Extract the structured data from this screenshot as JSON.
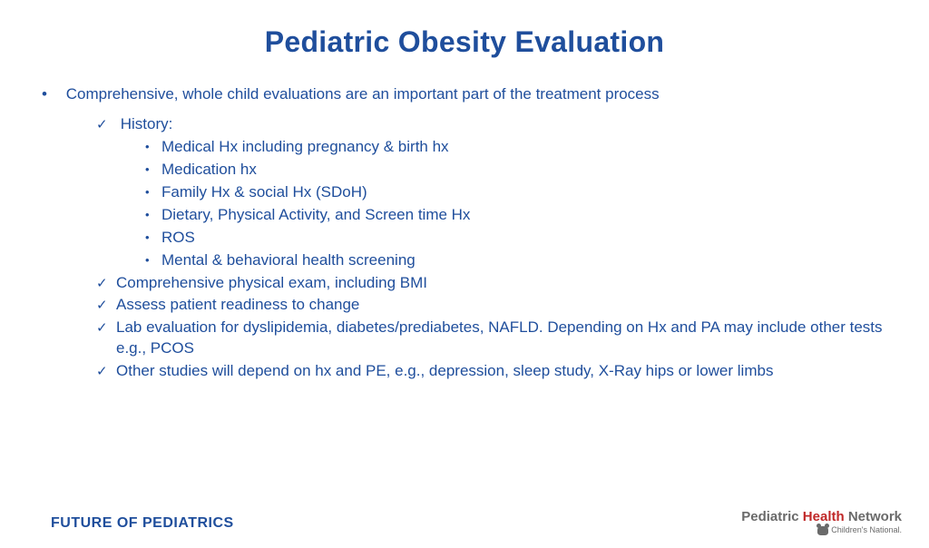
{
  "title": "Pediatric Obesity Evaluation",
  "colors": {
    "brand": "#1f4e9c",
    "accent_red": "#c02828",
    "grey": "#6a6a6a",
    "bg": "#ffffff"
  },
  "typography": {
    "title_fontsize": 32,
    "body_fontsize": 17,
    "footer_fontsize": 16
  },
  "bullets": {
    "lead": "Comprehensive, whole child evaluations are an important part of the treatment process",
    "items": [
      {
        "label": "History:",
        "children": [
          "Medical Hx including pregnancy & birth hx",
          "Medication hx",
          "Family Hx & social Hx (SDoH)",
          "Dietary, Physical Activity, and Screen time Hx",
          "ROS",
          "Mental & behavioral health screening"
        ]
      },
      {
        "label": "Comprehensive physical exam, including BMI"
      },
      {
        "label": "Assess patient readiness to change"
      },
      {
        "label": "Lab evaluation for dyslipidemia, diabetes/prediabetes, NAFLD. Depending on Hx and PA may include other tests e.g., PCOS"
      },
      {
        "label": "Other studies will depend on hx and PE, e.g., depression, sleep study, X-Ray hips or lower limbs"
      }
    ]
  },
  "footer": {
    "left": "FUTURE OF PEDIATRICS",
    "logo": {
      "w1": "Pediatric",
      "w2": "Health",
      "w3": "Network",
      "sub": "Children's National."
    }
  }
}
